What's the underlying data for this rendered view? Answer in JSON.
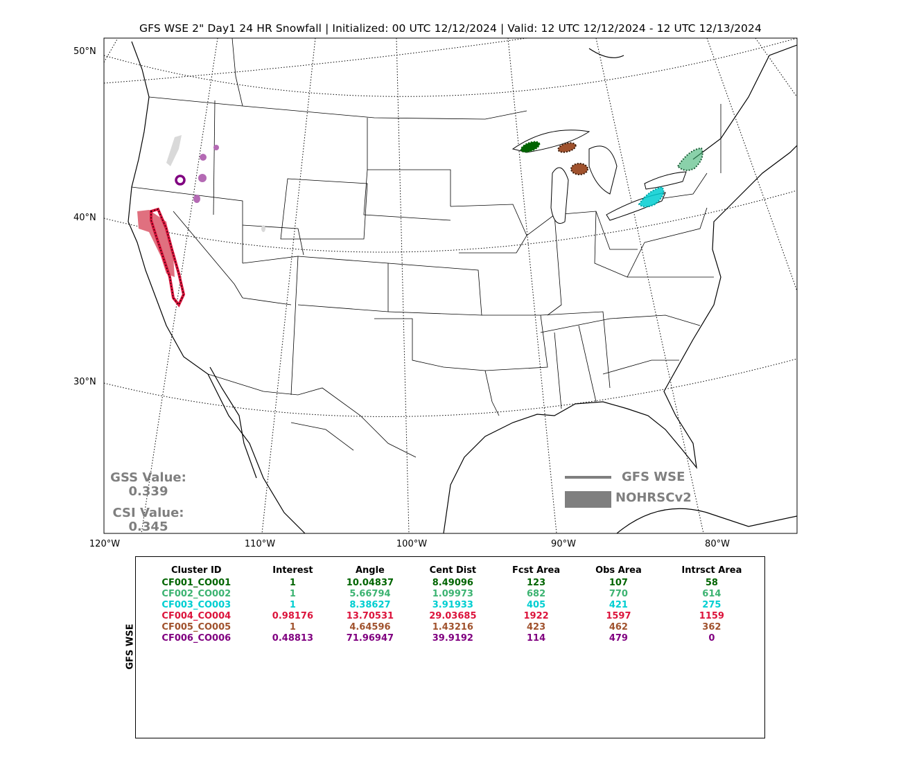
{
  "title": "GFS WSE 2\" Day1 24 HR Snowfall | Initialized: 00 UTC 12/12/2024 | Valid: 12 UTC 12/12/2024 - 12 UTC 12/13/2024",
  "map": {
    "lat_labels": [
      "50°N",
      "40°N",
      "30°N"
    ],
    "lon_labels": [
      "120°W",
      "110°W",
      "100°W",
      "90°W",
      "80°W"
    ]
  },
  "scores": {
    "gss_label": "GSS Value:",
    "gss_value": "0.339",
    "csi_label": "CSI Value:",
    "csi_value": "0.345",
    "text_color": "#7f7f7f"
  },
  "legend": {
    "forecast_label": "GFS WSE",
    "observed_label": "NOHRSCv2",
    "color": "#7f7f7f"
  },
  "table": {
    "side_label": "GFS WSE",
    "headers": [
      "Cluster ID",
      "Interest",
      "Angle",
      "Cent Dist",
      "Fcst Area",
      "Obs Area",
      "Intrsct Area"
    ],
    "rows": [
      {
        "color": "#006400",
        "cells": [
          "CF001_CO001",
          "1",
          "10.04837",
          "8.49096",
          "123",
          "107",
          "58"
        ]
      },
      {
        "color": "#3cb371",
        "cells": [
          "CF002_CO002",
          "1",
          "5.66794",
          "1.09973",
          "682",
          "770",
          "614"
        ]
      },
      {
        "color": "#00ced1",
        "cells": [
          "CF003_CO003",
          "1",
          "8.38627",
          "3.91933",
          "405",
          "421",
          "275"
        ]
      },
      {
        "color": "#dc143c",
        "cells": [
          "CF004_CO004",
          "0.98176",
          "13.70531",
          "29.03685",
          "1922",
          "1597",
          "1159"
        ]
      },
      {
        "color": "#a0522d",
        "cells": [
          "CF005_CO005",
          "1",
          "4.64596",
          "1.43216",
          "423",
          "462",
          "362"
        ]
      },
      {
        "color": "#800080",
        "cells": [
          "CF006_CO006",
          "0.48813",
          "71.96947",
          "39.9192",
          "114",
          "479",
          "0"
        ]
      }
    ]
  }
}
